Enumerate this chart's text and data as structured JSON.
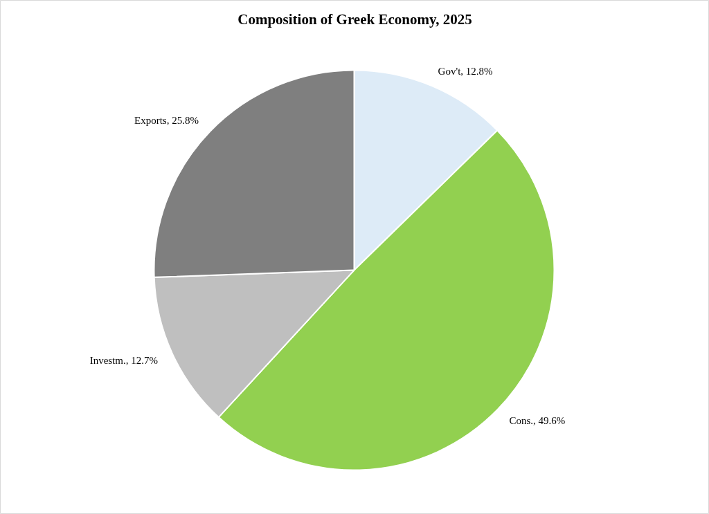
{
  "chart_data": {
    "type": "pie",
    "title": "Composition of Greek Economy, 2025",
    "categories": [
      "Gov't",
      "Cons.",
      "Investm.",
      "Exports"
    ],
    "values": [
      12.8,
      49.6,
      12.7,
      25.8
    ],
    "colors": [
      "#ddebf7",
      "#92d050",
      "#bfbfbf",
      "#7f7f7f"
    ],
    "value_labels": [
      "12.8%",
      "49.6%",
      "12.7%",
      "25.8%"
    ]
  }
}
